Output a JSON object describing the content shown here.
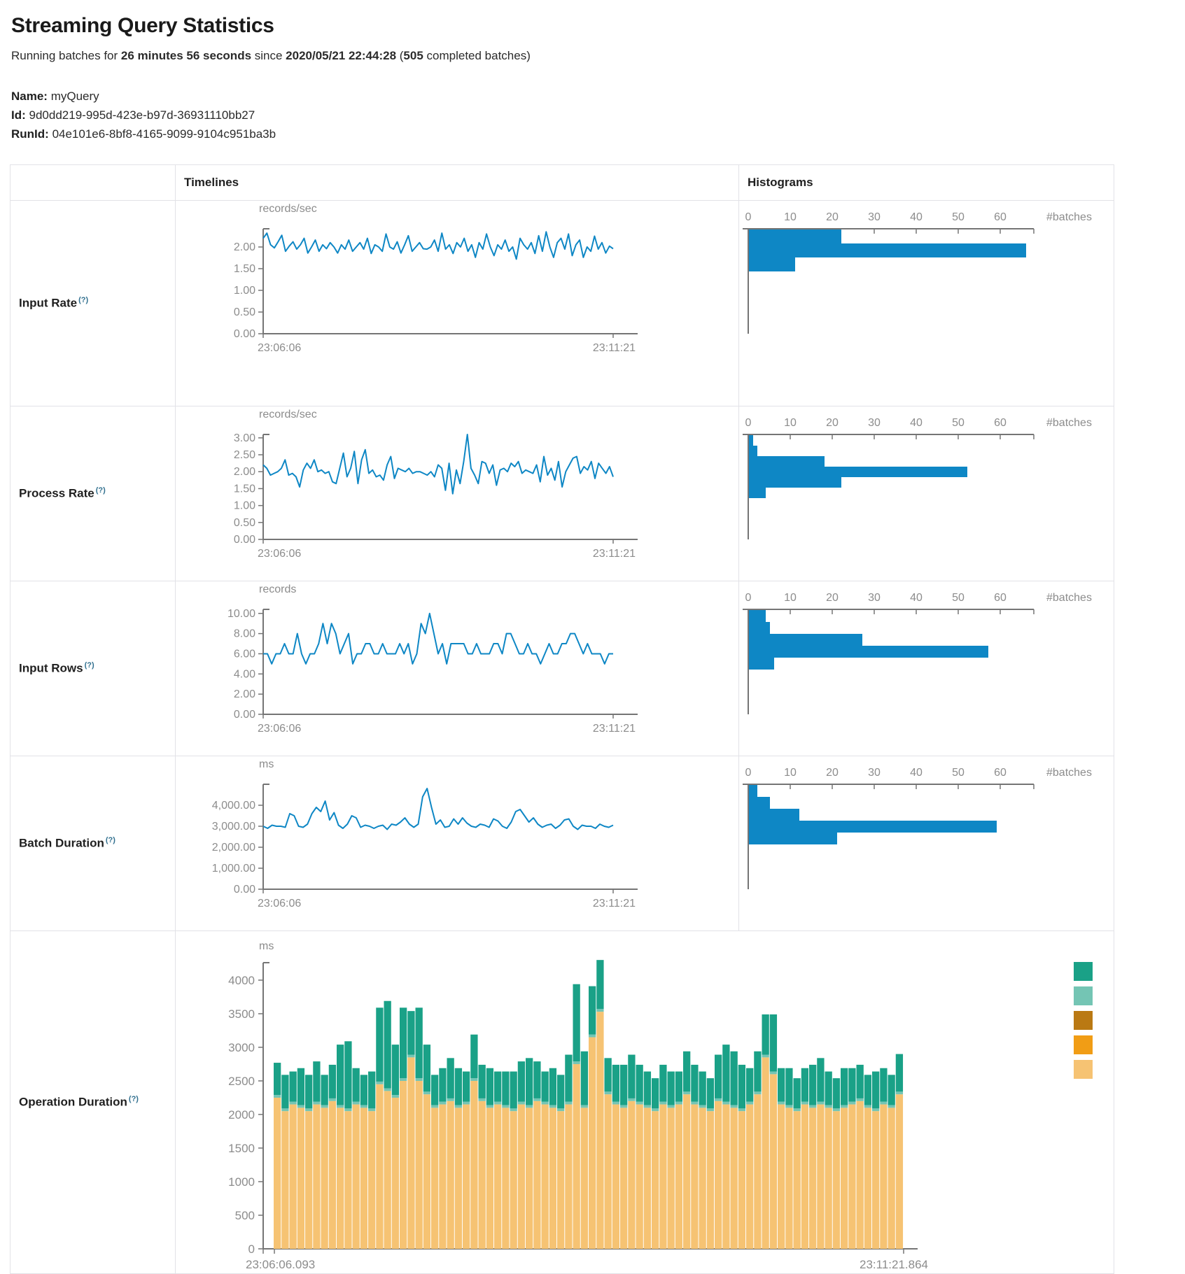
{
  "page": {
    "title": "Streaming Query Statistics",
    "subtitle_prefix": "Running batches for ",
    "duration": "26 minutes 56 seconds",
    "subtitle_mid": " since ",
    "start_time": "2020/05/21 22:44:28",
    "subtitle_open": " (",
    "completed_batches": "505",
    "subtitle_suffix": " completed batches)",
    "name_label": "Name:",
    "name_value": "myQuery",
    "id_label": "Id:",
    "id_value": "9d0dd219-995d-423e-b97d-36931110bb27",
    "runid_label": "RunId:",
    "runid_value": "04e101e6-8bf8-4165-9099-9104c951ba3b"
  },
  "table": {
    "col_timelines": "Timelines",
    "col_histograms": "Histograms",
    "rows": [
      {
        "label": "Input Rate",
        "help": "(?)"
      },
      {
        "label": "Process Rate",
        "help": "(?)"
      },
      {
        "label": "Input Rows",
        "help": "(?)"
      },
      {
        "label": "Batch Duration",
        "help": "(?)"
      },
      {
        "label": "Operation Duration",
        "help": "(?)"
      }
    ]
  },
  "colors": {
    "accent_blue": "#0e87c5",
    "axis": "#757575",
    "tick_label": "#8c8c8c",
    "help": "#31708f",
    "border": "#e2e2e7",
    "teal": "#1aa187",
    "light_teal": "#74c5b4",
    "dark_orange": "#ba7913",
    "orange": "#f19d15",
    "tan": "#f6c373"
  },
  "chart_data": [
    {
      "id": "input-rate-timeline",
      "type": "line",
      "ylabel": "records/sec",
      "x_range": [
        "23:06:06",
        "23:11:21"
      ],
      "ylim": [
        0,
        2.42
      ],
      "yticks": [
        {
          "label": "2.00",
          "v": 2.0
        },
        {
          "label": "1.50",
          "v": 1.5
        },
        {
          "label": "1.00",
          "v": 1.0
        },
        {
          "label": "0.50",
          "v": 0.5
        },
        {
          "label": "0.00",
          "v": 0.0
        }
      ],
      "values": [
        2.2,
        2.32,
        2.05,
        1.98,
        2.12,
        2.27,
        1.9,
        2.02,
        2.12,
        1.95,
        2.05,
        2.2,
        1.86,
        2.0,
        2.16,
        1.9,
        2.05,
        1.96,
        2.1,
        2.0,
        1.86,
        2.05,
        1.95,
        2.16,
        1.9,
        2.0,
        2.1,
        1.95,
        2.2,
        1.85,
        2.05,
        2.0,
        1.9,
        2.3,
        2.0,
        1.95,
        2.12,
        1.86,
        2.05,
        2.26,
        1.9,
        2.0,
        2.1,
        1.96,
        1.95,
        2.0,
        2.16,
        1.9,
        2.32,
        1.95,
        2.05,
        1.85,
        2.1,
        2.0,
        2.2,
        1.9,
        2.05,
        1.76,
        2.1,
        1.95,
        2.3,
        2.0,
        1.8,
        2.05,
        1.95,
        2.16,
        1.9,
        2.0,
        1.72,
        2.2,
        2.05,
        1.95,
        2.1,
        1.85,
        2.26,
        1.9,
        2.35,
        2.0,
        1.76,
        2.1,
        2.2,
        1.95,
        2.3,
        1.8,
        2.05,
        2.16,
        1.76,
        2.0,
        1.9,
        2.25,
        1.95,
        2.1,
        1.86,
        2.02,
        1.96
      ]
    },
    {
      "id": "input-rate-histogram",
      "type": "bar",
      "orientation": "horizontal",
      "xlabel": "#batches",
      "xticks": [
        0,
        10,
        20,
        30,
        40,
        50,
        60
      ],
      "xlim": [
        0,
        68
      ],
      "values": [
        22,
        66,
        11
      ]
    },
    {
      "id": "process-rate-timeline",
      "type": "line",
      "ylabel": "records/sec",
      "x_range": [
        "23:06:06",
        "23:11:21"
      ],
      "ylim": [
        0,
        3.1
      ],
      "yticks": [
        {
          "label": "3.00",
          "v": 3.0
        },
        {
          "label": "2.50",
          "v": 2.5
        },
        {
          "label": "2.00",
          "v": 2.0
        },
        {
          "label": "1.50",
          "v": 1.5
        },
        {
          "label": "1.00",
          "v": 1.0
        },
        {
          "label": "0.50",
          "v": 0.5
        },
        {
          "label": "0.00",
          "v": 0.0
        }
      ],
      "values": [
        2.2,
        2.1,
        1.9,
        1.95,
        2.0,
        2.1,
        2.35,
        1.9,
        1.95,
        1.85,
        1.55,
        2.05,
        2.25,
        2.1,
        2.35,
        2.0,
        2.05,
        1.95,
        2.0,
        1.7,
        1.65,
        2.1,
        2.55,
        1.85,
        2.1,
        2.6,
        1.65,
        2.35,
        2.65,
        1.95,
        2.05,
        1.85,
        1.9,
        1.75,
        2.2,
        2.45,
        1.8,
        2.1,
        2.05,
        2.0,
        2.1,
        1.95,
        2.0,
        2.0,
        1.95,
        1.9,
        2.0,
        1.85,
        2.2,
        2.1,
        1.45,
        2.25,
        1.35,
        2.05,
        1.65,
        2.3,
        3.1,
        2.1,
        1.9,
        1.65,
        2.3,
        2.25,
        1.95,
        2.2,
        1.6,
        2.05,
        2.1,
        2.0,
        2.25,
        2.15,
        2.3,
        1.95,
        2.05,
        2.0,
        1.95,
        2.2,
        1.7,
        2.45,
        1.9,
        2.1,
        1.75,
        2.3,
        1.55,
        2.0,
        2.2,
        2.4,
        2.45,
        1.95,
        2.15,
        2.05,
        2.3,
        1.8,
        2.25,
        2.1,
        1.95,
        2.15,
        1.85
      ]
    },
    {
      "id": "process-rate-histogram",
      "type": "bar",
      "orientation": "horizontal",
      "xlabel": "#batches",
      "xticks": [
        0,
        10,
        20,
        30,
        40,
        50,
        60
      ],
      "xlim": [
        0,
        68
      ],
      "values": [
        1,
        2,
        18,
        52,
        22,
        4
      ]
    },
    {
      "id": "input-rows-timeline",
      "type": "line",
      "ylabel": "records",
      "x_range": [
        "23:06:06",
        "23:11:21"
      ],
      "ylim": [
        0,
        10.4
      ],
      "yticks": [
        {
          "label": "10.00",
          "v": 10.0
        },
        {
          "label": "8.00",
          "v": 8.0
        },
        {
          "label": "6.00",
          "v": 6.0
        },
        {
          "label": "4.00",
          "v": 4.0
        },
        {
          "label": "2.00",
          "v": 2.0
        },
        {
          "label": "0.00",
          "v": 0.0
        }
      ],
      "values": [
        6,
        6,
        5,
        6,
        6,
        7,
        6,
        6,
        8,
        6,
        5,
        6,
        6,
        7,
        9,
        7,
        9,
        8,
        6,
        7,
        8,
        5,
        6,
        6,
        7,
        7,
        6,
        6,
        7,
        6,
        6,
        6,
        7,
        6,
        7,
        5,
        6,
        9,
        8,
        10,
        8,
        6,
        7,
        5,
        7,
        7,
        7,
        7,
        6,
        6,
        7,
        6,
        6,
        6,
        7,
        7,
        6,
        8,
        8,
        7,
        6,
        6,
        7,
        6,
        6,
        5,
        6,
        7,
        6,
        6,
        7,
        7,
        8,
        8,
        7,
        6,
        7,
        6,
        6,
        6,
        5,
        6,
        6
      ]
    },
    {
      "id": "input-rows-histogram",
      "type": "bar",
      "orientation": "horizontal",
      "xlabel": "#batches",
      "xticks": [
        0,
        10,
        20,
        30,
        40,
        50,
        60
      ],
      "xlim": [
        0,
        68
      ],
      "values": [
        4,
        5,
        27,
        57,
        6
      ]
    },
    {
      "id": "batch-duration-timeline",
      "type": "line",
      "ylabel": "ms",
      "x_range": [
        "23:06:06",
        "23:11:21"
      ],
      "ylim": [
        0,
        5000
      ],
      "yticks": [
        {
          "label": "4,000.00",
          "v": 4000
        },
        {
          "label": "3,000.00",
          "v": 3000
        },
        {
          "label": "2,000.00",
          "v": 2000
        },
        {
          "label": "1,000.00",
          "v": 1000
        },
        {
          "label": "0.00",
          "v": 0
        }
      ],
      "values": [
        3000,
        2900,
        3050,
        3000,
        3000,
        2950,
        3600,
        3500,
        3000,
        2950,
        3100,
        3600,
        3900,
        3700,
        4200,
        3300,
        3650,
        3050,
        2900,
        3100,
        3500,
        3400,
        2950,
        3050,
        3000,
        2900,
        3000,
        3050,
        2850,
        3100,
        3050,
        3200,
        3400,
        3100,
        2950,
        3100,
        4400,
        4800,
        3900,
        3100,
        3300,
        2950,
        3000,
        3350,
        3100,
        3400,
        3150,
        3000,
        2950,
        3100,
        3050,
        2950,
        3350,
        3250,
        3000,
        2900,
        3200,
        3700,
        3800,
        3500,
        3200,
        3400,
        3100,
        2950,
        3050,
        3100,
        2900,
        3050,
        3300,
        3350,
        3000,
        2850,
        3050,
        3000,
        3000,
        2900,
        3100,
        3000,
        2950,
        3050
      ]
    },
    {
      "id": "batch-duration-histogram",
      "type": "bar",
      "orientation": "horizontal",
      "xlabel": "#batches",
      "xticks": [
        0,
        10,
        20,
        30,
        40,
        50,
        60
      ],
      "xlim": [
        0,
        68
      ],
      "values": [
        2,
        5,
        12,
        59,
        21
      ]
    },
    {
      "id": "operation-duration-chart",
      "type": "bar",
      "stacked": true,
      "ylabel": "ms",
      "x_range": [
        "23:06:06.093",
        "23:11:21.864"
      ],
      "ylim": [
        0,
        4260
      ],
      "yticks": [
        {
          "label": "4000",
          "v": 4000
        },
        {
          "label": "3500",
          "v": 3500
        },
        {
          "label": "3000",
          "v": 3000
        },
        {
          "label": "2500",
          "v": 2500
        },
        {
          "label": "2000",
          "v": 2000
        },
        {
          "label": "1500",
          "v": 1500
        },
        {
          "label": "1000",
          "v": 1000
        },
        {
          "label": "500",
          "v": 500
        },
        {
          "label": "0",
          "v": 0
        }
      ],
      "legend": [
        {
          "name": "teal",
          "color": "#1aa187"
        },
        {
          "name": "light-teal",
          "color": "#74c5b4"
        },
        {
          "name": "dark-orange",
          "color": "#ba7913"
        },
        {
          "name": "orange",
          "color": "#f19d15"
        },
        {
          "name": "tan",
          "color": "#f6c373"
        }
      ],
      "series": [
        {
          "id": "tan",
          "color": "#f6c373",
          "values": [
            2250,
            2050,
            2150,
            2100,
            2050,
            2150,
            2100,
            2200,
            2100,
            2050,
            2150,
            2100,
            2050,
            2450,
            2350,
            2250,
            2500,
            2850,
            2500,
            2300,
            2100,
            2150,
            2200,
            2100,
            2150,
            2500,
            2200,
            2100,
            2150,
            2100,
            2050,
            2150,
            2100,
            2200,
            2150,
            2100,
            2050,
            2150,
            2750,
            2100,
            3150,
            3530,
            2300,
            2150,
            2100,
            2200,
            2150,
            2100,
            2050,
            2150,
            2100,
            2150,
            2300,
            2150,
            2100,
            2050,
            2200,
            2150,
            2100,
            2050,
            2150,
            2300,
            2850,
            2600,
            2150,
            2100,
            2050,
            2150,
            2100,
            2150,
            2100,
            2050,
            2100,
            2150,
            2200,
            2100,
            2050,
            2150,
            2100,
            2300
          ]
        },
        {
          "id": "orange",
          "color": "#f19d15",
          "constant": 0
        },
        {
          "id": "dark-orange",
          "color": "#ba7913",
          "constant": 0
        },
        {
          "id": "light-teal",
          "color": "#74c5b4",
          "constant": 40
        },
        {
          "id": "teal",
          "color": "#1aa187",
          "values": [
            480,
            500,
            450,
            550,
            500,
            600,
            450,
            500,
            900,
            1000,
            500,
            450,
            550,
            1100,
            1300,
            750,
            1050,
            650,
            1050,
            700,
            450,
            500,
            600,
            550,
            450,
            650,
            500,
            550,
            450,
            500,
            550,
            600,
            700,
            550,
            450,
            550,
            500,
            700,
            1150,
            800,
            720,
            730,
            500,
            550,
            600,
            650,
            550,
            500,
            450,
            550,
            500,
            450,
            600,
            550,
            500,
            450,
            650,
            850,
            800,
            650,
            500,
            600,
            600,
            850,
            500,
            550,
            450,
            500,
            600,
            650,
            500,
            450,
            550,
            500,
            500,
            450,
            550,
            500,
            450,
            560
          ]
        }
      ]
    }
  ]
}
